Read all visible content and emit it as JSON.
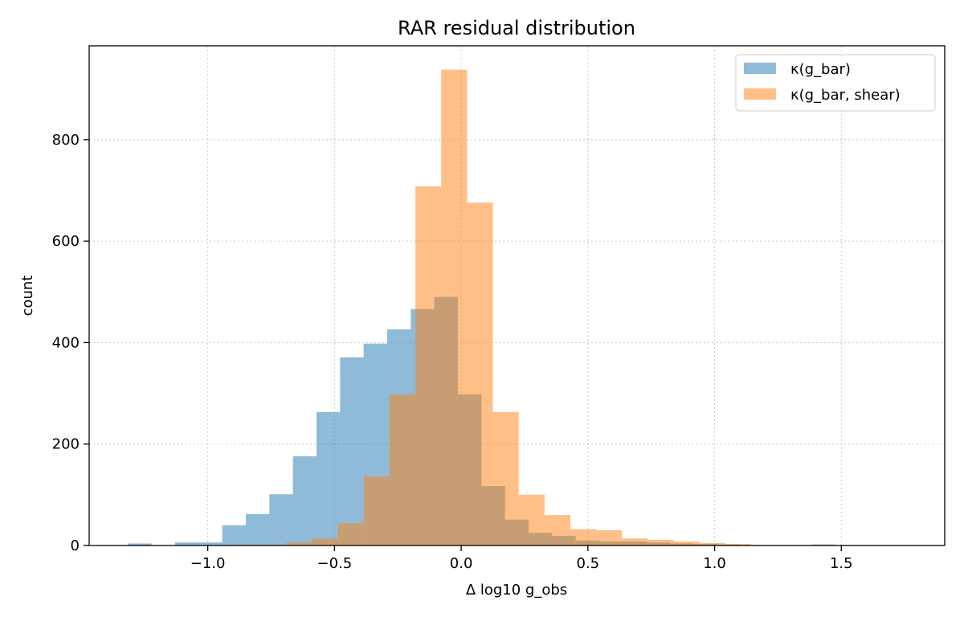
{
  "chart_data": {
    "type": "bar",
    "title": "RAR residual distribution",
    "xlabel": "Δ log10 g_obs",
    "ylabel": "count",
    "xlim": [
      -1.468,
      1.908
    ],
    "ylim": [
      0,
      985
    ],
    "xticks": [
      -1.0,
      -0.5,
      0.0,
      0.5,
      1.0,
      1.5
    ],
    "xtick_labels": [
      "−1.0",
      "−0.5",
      "0.0",
      "0.5",
      "1.0",
      "1.5"
    ],
    "yticks": [
      0,
      200,
      400,
      600,
      800
    ],
    "ytick_labels": [
      "0",
      "200",
      "400",
      "600",
      "800"
    ],
    "grid": true,
    "legend_position": "top-right",
    "series": [
      {
        "name": "κ(g_bar)",
        "color": "#1f77b4",
        "alpha": 0.5,
        "bin_start": -1.315,
        "bin_width": 0.093,
        "values": [
          4,
          0,
          6,
          6,
          40,
          62,
          101,
          176,
          263,
          371,
          398,
          426,
          466,
          490,
          298,
          117,
          51,
          25,
          19,
          10,
          8,
          8,
          6,
          4,
          3,
          2,
          1,
          0,
          0,
          2
        ]
      },
      {
        "name": "κ(g_bar, shear)",
        "color": "#ff7f0e",
        "alpha": 0.5,
        "bin_start": -0.894,
        "bin_width": 0.1019,
        "values": [
          2,
          2,
          6,
          14,
          44,
          136,
          298,
          708,
          938,
          676,
          263,
          100,
          60,
          32,
          30,
          14,
          11,
          8,
          5,
          3
        ]
      }
    ]
  }
}
